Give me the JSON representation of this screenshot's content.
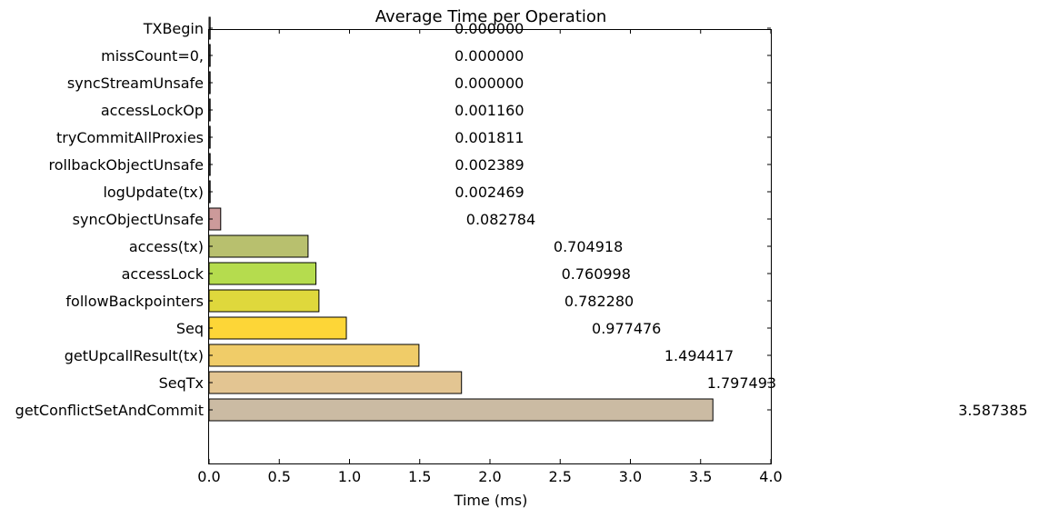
{
  "chart_data": {
    "type": "bar",
    "orientation": "horizontal",
    "title": "Average Time per Operation",
    "xlabel": "Time (ms)",
    "ylabel": "",
    "xlim": [
      0.0,
      4.0
    ],
    "xticks": [
      "0.0",
      "0.5",
      "1.0",
      "1.5",
      "2.0",
      "2.5",
      "3.0",
      "3.5",
      "4.0"
    ],
    "grid": false,
    "categories": [
      "TXBegin",
      "missCount=0,",
      "syncStreamUnsafe",
      "accessLockOp",
      "tryCommitAllProxies",
      "rollbackObjectUnsafe",
      "logUpdate(tx)",
      "syncObjectUnsafe",
      "access(tx)",
      "accessLock",
      "followBackpointers",
      "Seq",
      "getUpcallResult(tx)",
      "SeqTx",
      "getConflictSetAndCommit"
    ],
    "values": [
      0.0,
      0.0,
      0.0,
      0.00116,
      0.001811,
      0.002389,
      0.002469,
      0.082784,
      0.704918,
      0.760998,
      0.78228,
      0.977476,
      1.494417,
      1.797493,
      3.587385
    ],
    "value_labels": [
      "0.000000",
      "0.000000",
      "0.000000",
      "0.001160",
      "0.001811",
      "0.002389",
      "0.002469",
      "0.082784",
      "0.704918",
      "0.760998",
      "0.782280",
      "0.977476",
      "1.494417",
      "1.797493",
      "3.587385"
    ],
    "colors": [
      "#b0b0b0",
      "#b0b0b0",
      "#b0b0b0",
      "#b0b0b0",
      "#b0b0b0",
      "#b0b0b0",
      "#b0b0b0",
      "#cc9a9a",
      "#b8c06e",
      "#b5dc4e",
      "#dfd83c",
      "#fdd637",
      "#f0cc68",
      "#e3c592",
      "#cbbba3"
    ]
  }
}
